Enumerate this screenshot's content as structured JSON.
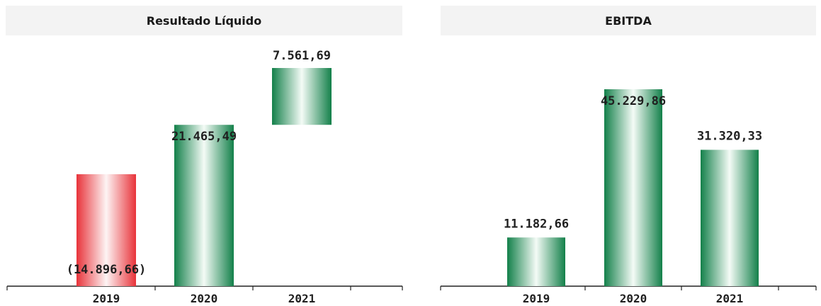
{
  "colors": {
    "positive_edge": "#13804a",
    "positive_mid": "#f4fbf6",
    "negative_edge": "#e8333a",
    "negative_mid": "#fdf4f4",
    "axis": "#222222"
  },
  "chart_data": [
    {
      "type": "bar",
      "title": "Resultado Líquido",
      "categories": [
        "2019",
        "2020",
        "2021"
      ],
      "values": [
        -14896.66,
        21465.49,
        7561.69
      ],
      "value_labels": [
        "(14.896,66)",
        "21.465,49",
        "7.561,69"
      ],
      "xlabel": "",
      "ylabel": "",
      "grid": false,
      "legend": "none",
      "note": "Bars rendered as a running (waterfall-style) display: each bar spans from the previous cumulative total to the new cumulative total."
    },
    {
      "type": "bar",
      "title": "EBITDA",
      "categories": [
        "2019",
        "2020",
        "2021"
      ],
      "values": [
        11182.66,
        45229.86,
        31320.33
      ],
      "value_labels": [
        "11.182,66",
        "45.229,86",
        "31.320,33"
      ],
      "xlabel": "",
      "ylabel": "",
      "grid": false,
      "legend": "none"
    }
  ]
}
